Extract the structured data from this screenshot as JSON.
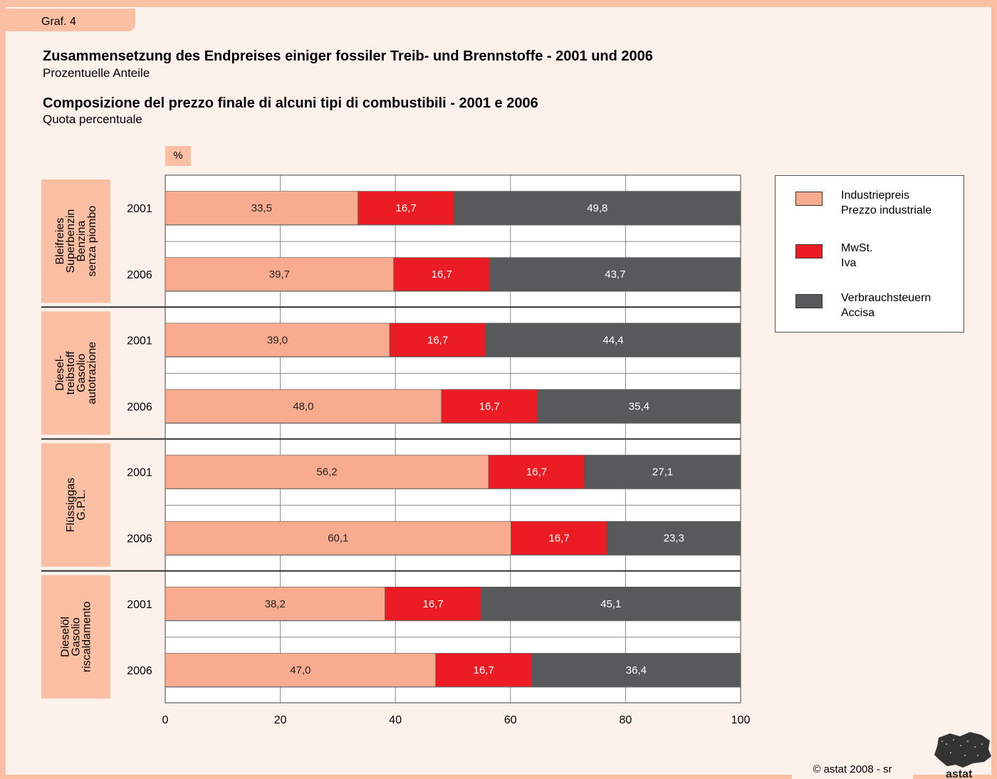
{
  "graf_label": "Graf. 4",
  "title_de": "Zusammensetzung des Endpreises einiger fossiler Treib- und Brennstoffe - 2001 und 2006",
  "subtitle_de": "Prozentuelle Anteile",
  "title_it": "Composizione del prezzo finale di alcuni tipi di combustibili - 2001 e 2006",
  "subtitle_it": "Quota percentuale",
  "unit_label": "%",
  "copyright": "astat 2008 - sr",
  "copyright_symbol": "©",
  "logo_text": "astat",
  "colors": {
    "industrial": "#f9ab8f",
    "vat": "#ec1c24",
    "excise": "#58595b",
    "background": "#fdf1ec",
    "accent": "#fbbfa4"
  },
  "legend": [
    {
      "label_de": "Industriepreis",
      "label_it": "Prezzo industriale",
      "color_key": "industrial"
    },
    {
      "label_de": "MwSt.",
      "label_it": "Iva",
      "color_key": "vat"
    },
    {
      "label_de": "Verbrauchsteuern",
      "label_it": "Accisa",
      "color_key": "excise"
    }
  ],
  "chart_data": {
    "type": "bar",
    "orientation": "horizontal",
    "stacked": true,
    "xlim": [
      0,
      100
    ],
    "x_ticks": [
      "0",
      "20",
      "40",
      "60",
      "80",
      "100"
    ],
    "grid": true,
    "legend_position": "right",
    "groups": [
      {
        "label_lines": [
          "Bleifreies",
          "Superbenzin",
          "Benzina",
          "senza piombo"
        ],
        "rows": [
          {
            "year": "2001",
            "values": [
              33.5,
              16.7,
              49.8
            ],
            "labels": [
              "33,5",
              "16,7",
              "49,8"
            ]
          },
          {
            "year": "2006",
            "values": [
              39.7,
              16.7,
              43.7
            ],
            "labels": [
              "39,7",
              "16,7",
              "43,7"
            ]
          }
        ]
      },
      {
        "label_lines": [
          "Diesel-",
          "treibstoff",
          "Gasolio",
          "autotrazione"
        ],
        "rows": [
          {
            "year": "2001",
            "values": [
              39.0,
              16.7,
              44.4
            ],
            "labels": [
              "39,0",
              "16,7",
              "44,4"
            ]
          },
          {
            "year": "2006",
            "values": [
              48.0,
              16.7,
              35.4
            ],
            "labels": [
              "48,0",
              "16,7",
              "35,4"
            ]
          }
        ]
      },
      {
        "label_lines": [
          "Flüssiggas",
          "G.P.L."
        ],
        "rows": [
          {
            "year": "2001",
            "values": [
              56.2,
              16.7,
              27.1
            ],
            "labels": [
              "56,2",
              "16,7",
              "27,1"
            ]
          },
          {
            "year": "2006",
            "values": [
              60.1,
              16.7,
              23.3
            ],
            "labels": [
              "60,1",
              "16,7",
              "23,3"
            ]
          }
        ]
      },
      {
        "label_lines": [
          "Dieselöl",
          "Gasolio",
          "riscaldamento"
        ],
        "rows": [
          {
            "year": "2001",
            "values": [
              38.2,
              16.7,
              45.1
            ],
            "labels": [
              "38,2",
              "16,7",
              "45,1"
            ]
          },
          {
            "year": "2006",
            "values": [
              47.0,
              16.7,
              36.4
            ],
            "labels": [
              "47,0",
              "16,7",
              "36,4"
            ]
          }
        ]
      }
    ],
    "series": [
      {
        "name": "Industriepreis / Prezzo industriale",
        "color_key": "industrial"
      },
      {
        "name": "MwSt. / Iva",
        "color_key": "vat"
      },
      {
        "name": "Verbrauchsteuern / Accisa",
        "color_key": "excise"
      }
    ]
  }
}
